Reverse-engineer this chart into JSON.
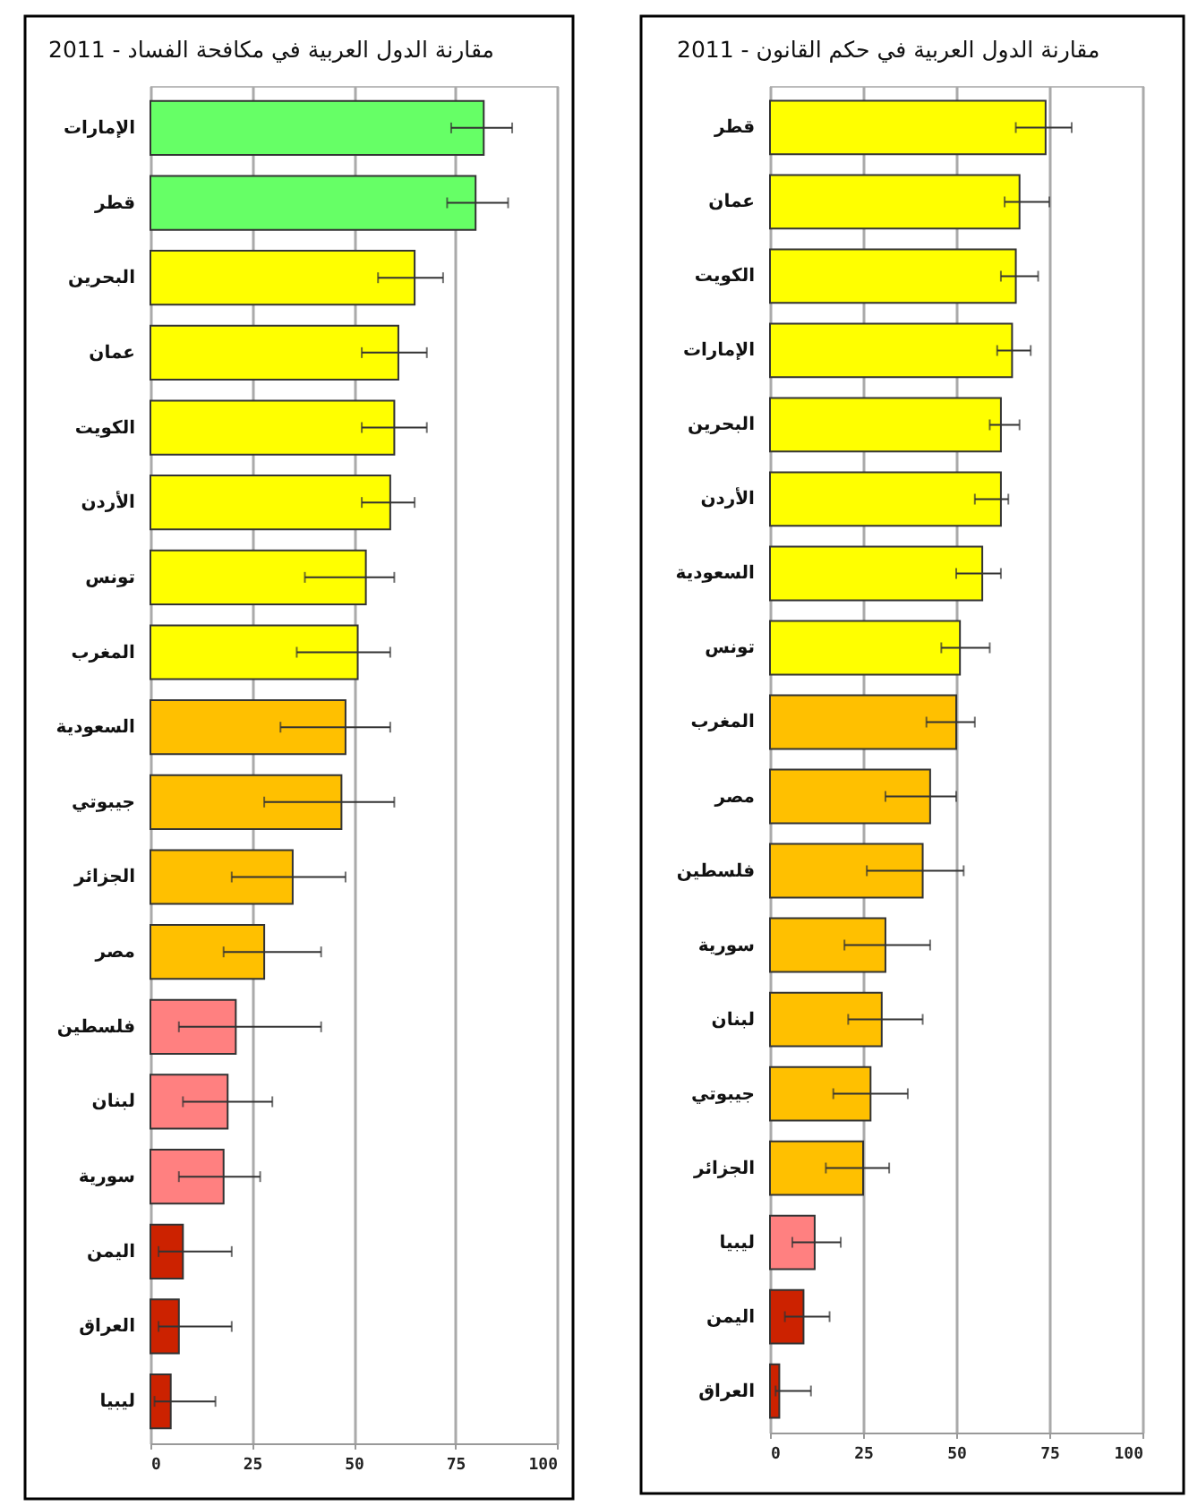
{
  "chart_data": [
    {
      "type": "bar",
      "orientation": "horizontal",
      "title": "مقارنة الدول العربية في مكافحة الفساد - 2011",
      "categories": [
        "الإمارات",
        "قطر",
        "البحرين",
        "عمان",
        "الكويت",
        "الأردن",
        "تونس",
        "المغرب",
        "السعودية",
        "جيبوتي",
        "الجزائر",
        "مصر",
        "فلسطين",
        "لبنان",
        "سورية",
        "اليمن",
        "العراق",
        "ليبيا"
      ],
      "values": [
        82,
        80,
        65,
        61,
        60,
        59,
        53,
        51,
        48,
        47,
        35,
        28,
        21,
        19,
        18,
        8,
        7,
        5
      ],
      "errors": [
        [
          74,
          89
        ],
        [
          73,
          88
        ],
        [
          56,
          72
        ],
        [
          52,
          68
        ],
        [
          52,
          68
        ],
        [
          52,
          65
        ],
        [
          38,
          60
        ],
        [
          36,
          59
        ],
        [
          32,
          59
        ],
        [
          28,
          60
        ],
        [
          20,
          48
        ],
        [
          18,
          42
        ],
        [
          7,
          42
        ],
        [
          8,
          30
        ],
        [
          7,
          27
        ],
        [
          2,
          20
        ],
        [
          2,
          20
        ],
        [
          1,
          16
        ]
      ],
      "colors": [
        "#66ff66",
        "#66ff66",
        "#ffff00",
        "#ffff00",
        "#ffff00",
        "#ffff00",
        "#ffff00",
        "#ffff00",
        "#ffc000",
        "#ffc000",
        "#ffc000",
        "#ffc000",
        "#ff8080",
        "#ff8080",
        "#ff8080",
        "#cc2200",
        "#cc2200",
        "#cc2200"
      ],
      "xlim": [
        0,
        100
      ],
      "xticks": [
        0,
        25,
        50,
        75,
        100
      ],
      "grid": "x"
    },
    {
      "type": "bar",
      "orientation": "horizontal",
      "title": "مقارنة الدول العربية في حكم القانون - 2011",
      "categories": [
        "قطر",
        "عمان",
        "الكويت",
        "الإمارات",
        "البحرين",
        "الأردن",
        "السعودية",
        "تونس",
        "المغرب",
        "مصر",
        "فلسطين",
        "سورية",
        "لبنان",
        "جيبوتي",
        "الجزائر",
        "ليبيا",
        "اليمن",
        "العراق"
      ],
      "values": [
        74,
        67,
        66,
        65,
        62,
        62,
        57,
        51,
        50,
        43,
        41,
        31,
        30,
        27,
        25,
        12,
        9,
        2.5
      ],
      "errors": [
        [
          66,
          81
        ],
        [
          63,
          75
        ],
        [
          62,
          72
        ],
        [
          61,
          70
        ],
        [
          59,
          67
        ],
        [
          55,
          64
        ],
        [
          50,
          62
        ],
        [
          46,
          59
        ],
        [
          42,
          55
        ],
        [
          31,
          50
        ],
        [
          26,
          52
        ],
        [
          20,
          43
        ],
        [
          21,
          41
        ],
        [
          17,
          37
        ],
        [
          15,
          32
        ],
        [
          6,
          19
        ],
        [
          4,
          16
        ],
        [
          1.5,
          11
        ]
      ],
      "colors": [
        "#ffff00",
        "#ffff00",
        "#ffff00",
        "#ffff00",
        "#ffff00",
        "#ffff00",
        "#ffff00",
        "#ffff00",
        "#ffc000",
        "#ffc000",
        "#ffc000",
        "#ffc000",
        "#ffc000",
        "#ffc000",
        "#ffc000",
        "#ff8080",
        "#cc2200",
        "#cc2200"
      ],
      "xlim": [
        0,
        100
      ],
      "xticks": [
        0,
        25,
        50,
        75,
        100
      ],
      "grid": "x"
    }
  ]
}
